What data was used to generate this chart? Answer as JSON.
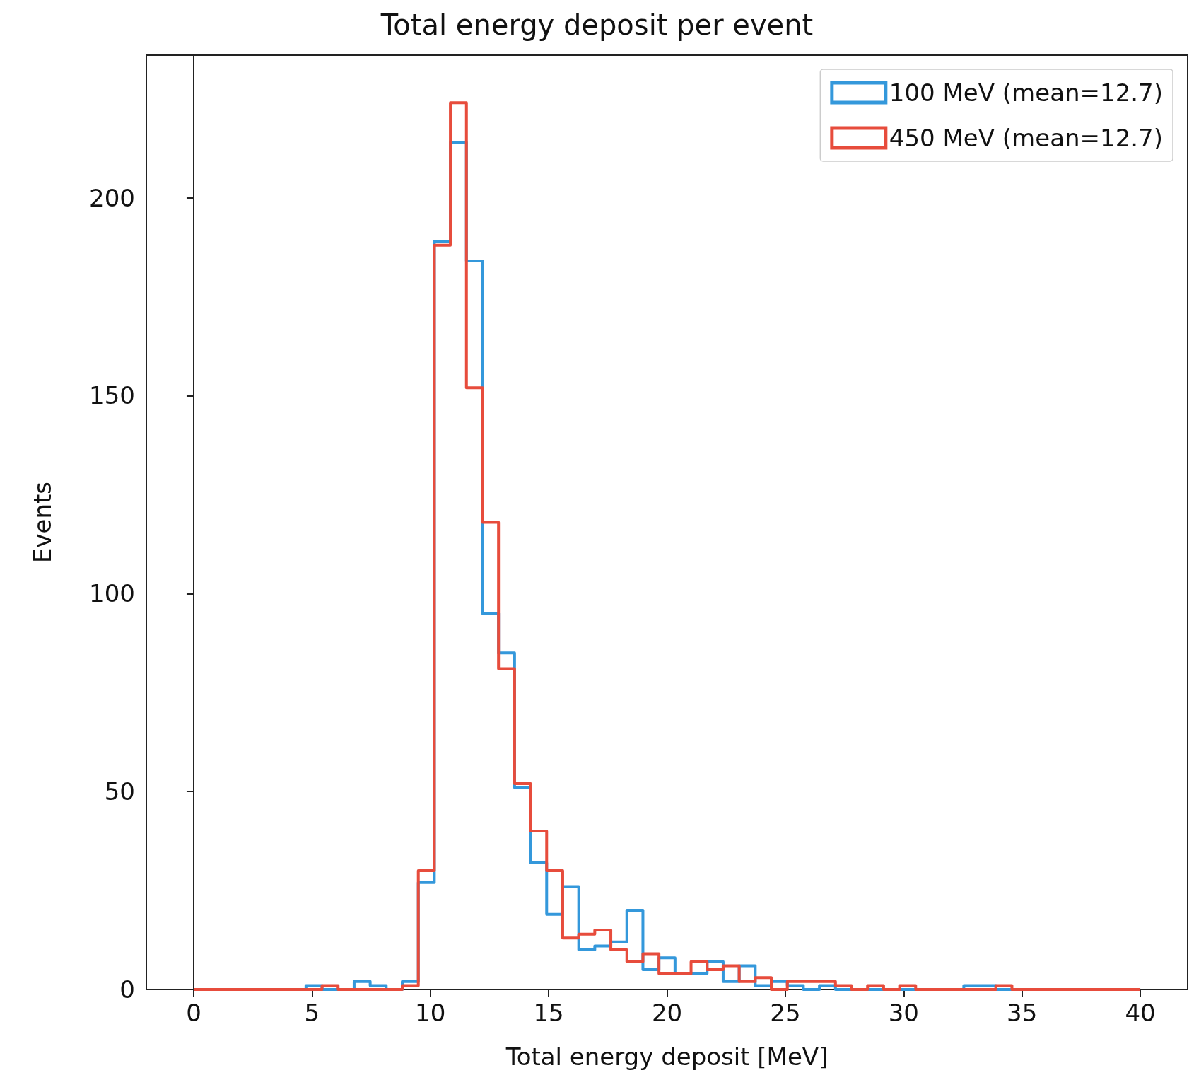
{
  "chart_data": {
    "type": "histogram",
    "title": "Total energy deposit per event",
    "xlabel": "Total energy deposit [MeV]",
    "ylabel": "Events",
    "bins": [
      0,
      0.678,
      1.356,
      2.034,
      2.712,
      3.39,
      4.068,
      4.746,
      5.424,
      6.102,
      6.78,
      7.458,
      8.136,
      8.814,
      9.492,
      10.169,
      10.847,
      11.525,
      12.203,
      12.881,
      13.559,
      14.237,
      14.915,
      15.593,
      16.271,
      16.949,
      17.627,
      18.305,
      18.983,
      19.661,
      20.339,
      21.017,
      21.695,
      22.373,
      23.051,
      23.729,
      24.407,
      25.085,
      25.763,
      26.441,
      27.119,
      27.797,
      28.475,
      29.153,
      29.831,
      30.508,
      31.186,
      31.864,
      32.542,
      33.22,
      33.898,
      34.576,
      35.254,
      35.932,
      36.61,
      37.288,
      37.966,
      38.644,
      39.322,
      40
    ],
    "series": [
      {
        "name": "100 MeV (mean=12.7)",
        "color": "#3498db",
        "values": [
          0,
          0,
          0,
          0,
          0,
          0,
          0,
          1,
          0,
          0,
          2,
          1,
          0,
          2,
          27,
          189,
          214,
          184,
          95,
          85,
          51,
          32,
          19,
          26,
          10,
          11,
          12,
          20,
          5,
          8,
          4,
          4,
          7,
          2,
          6,
          1,
          2,
          1,
          0,
          1,
          0,
          0,
          0,
          0,
          0,
          0,
          0,
          0,
          1,
          1,
          0,
          0,
          0,
          0,
          0,
          0,
          0,
          0,
          0
        ]
      },
      {
        "name": "450 MeV (mean=12.7)",
        "color": "#e74c3c",
        "values": [
          0,
          0,
          0,
          0,
          0,
          0,
          0,
          0,
          1,
          0,
          0,
          0,
          0,
          1,
          30,
          188,
          224,
          152,
          118,
          81,
          52,
          40,
          30,
          13,
          14,
          15,
          10,
          7,
          9,
          4,
          4,
          7,
          5,
          6,
          2,
          3,
          0,
          2,
          2,
          2,
          1,
          0,
          1,
          0,
          1,
          0,
          0,
          0,
          0,
          0,
          1,
          0,
          0,
          0,
          0,
          0,
          0,
          0,
          0
        ]
      }
    ],
    "xlim": [
      -2,
      42
    ],
    "xticks": [
      0,
      5,
      10,
      15,
      20,
      25,
      30,
      35,
      40
    ],
    "ylim": [
      0,
      236
    ],
    "yticks": [
      0,
      50,
      100,
      150,
      200
    ],
    "legend": "top right"
  }
}
